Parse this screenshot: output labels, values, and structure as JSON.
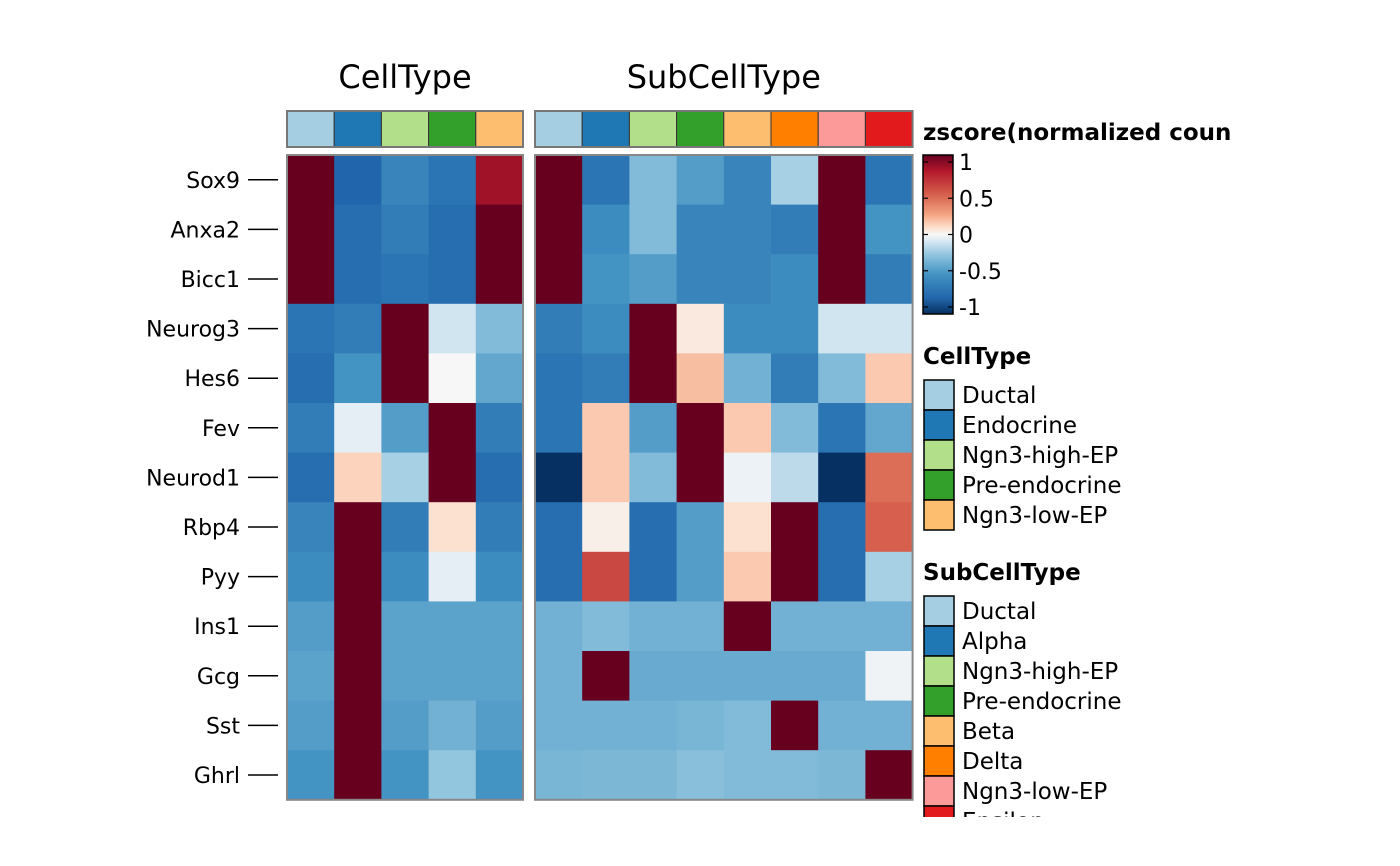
{
  "chart_data": {
    "type": "heatmap",
    "genes": [
      "Sox9",
      "Anxa2",
      "Bicc1",
      "Neurog3",
      "Hes6",
      "Fev",
      "Neurod1",
      "Rbp4",
      "Pyy",
      "Ins1",
      "Gcg",
      "Sst",
      "Ghrl"
    ],
    "color_scale": {
      "title": "zscore(normalized coun",
      "min": -1,
      "max": 1,
      "ticks": [
        "1",
        "0.5",
        "0",
        "-0.5",
        "-1"
      ],
      "tick_values": [
        1,
        0.5,
        0,
        -0.5,
        -1
      ]
    },
    "panels": [
      {
        "title": "CellType",
        "columns": [
          "Ductal",
          "Endocrine",
          "Ngn3-high-EP",
          "Pre-endocrine",
          "Ngn3-low-EP"
        ],
        "column_colors": [
          "#a6cee3",
          "#1f78b4",
          "#b2df8a",
          "#33a02c",
          "#fdbf6f"
        ],
        "values": [
          [
            1.0,
            -0.8,
            -0.6,
            -0.7,
            0.85
          ],
          [
            1.0,
            -0.75,
            -0.65,
            -0.75,
            1.0
          ],
          [
            1.0,
            -0.75,
            -0.7,
            -0.75,
            1.0
          ],
          [
            -0.7,
            -0.65,
            1.0,
            -0.1,
            -0.3
          ],
          [
            -0.75,
            -0.5,
            1.0,
            0.0,
            -0.4
          ],
          [
            -0.65,
            -0.05,
            -0.45,
            1.0,
            -0.65
          ],
          [
            -0.75,
            0.12,
            -0.2,
            1.0,
            -0.75
          ],
          [
            -0.6,
            1.0,
            -0.65,
            0.08,
            -0.65
          ],
          [
            -0.55,
            1.0,
            -0.55,
            -0.05,
            -0.55
          ],
          [
            -0.45,
            1.0,
            -0.42,
            -0.42,
            -0.42
          ],
          [
            -0.42,
            1.0,
            -0.42,
            -0.42,
            -0.42
          ],
          [
            -0.45,
            1.0,
            -0.45,
            -0.35,
            -0.45
          ],
          [
            -0.5,
            1.0,
            -0.5,
            -0.25,
            -0.5
          ]
        ]
      },
      {
        "title": "SubCellType",
        "columns": [
          "Ductal",
          "Alpha",
          "Ngn3-high-EP",
          "Pre-endocrine",
          "Beta",
          "Delta",
          "Ngn3-low-EP",
          "Epsilon"
        ],
        "column_colors": [
          "#a6cee3",
          "#1f78b4",
          "#b2df8a",
          "#33a02c",
          "#fdbf6f",
          "#ff7f00",
          "#fb9a99",
          "#e31a1c"
        ],
        "values": [
          [
            1.0,
            -0.7,
            -0.3,
            -0.45,
            -0.6,
            -0.2,
            1.0,
            -0.7
          ],
          [
            1.0,
            -0.55,
            -0.3,
            -0.6,
            -0.6,
            -0.65,
            1.0,
            -0.5
          ],
          [
            1.0,
            -0.5,
            -0.45,
            -0.6,
            -0.6,
            -0.55,
            1.0,
            -0.65
          ],
          [
            -0.65,
            -0.55,
            1.0,
            0.05,
            -0.55,
            -0.55,
            -0.1,
            -0.1
          ],
          [
            -0.7,
            -0.65,
            1.0,
            0.18,
            -0.35,
            -0.65,
            -0.3,
            0.15
          ],
          [
            -0.7,
            0.15,
            -0.45,
            1.0,
            0.15,
            -0.3,
            -0.7,
            -0.4
          ],
          [
            -1.0,
            0.15,
            -0.3,
            1.0,
            -0.03,
            -0.15,
            -1.0,
            0.45
          ],
          [
            -0.75,
            0.03,
            -0.75,
            -0.45,
            0.08,
            1.0,
            -0.75,
            0.5
          ],
          [
            -0.75,
            0.6,
            -0.75,
            -0.45,
            0.15,
            1.0,
            -0.75,
            -0.2
          ],
          [
            -0.35,
            -0.3,
            -0.35,
            -0.35,
            1.0,
            -0.35,
            -0.35,
            -0.35
          ],
          [
            -0.35,
            1.0,
            -0.38,
            -0.38,
            -0.38,
            -0.38,
            -0.38,
            -0.02
          ],
          [
            -0.35,
            -0.35,
            -0.35,
            -0.33,
            -0.3,
            1.0,
            -0.35,
            -0.35
          ],
          [
            -0.33,
            -0.32,
            -0.32,
            -0.28,
            -0.3,
            -0.3,
            -0.32,
            1.0
          ]
        ]
      }
    ],
    "legends": [
      {
        "title": "CellType",
        "entries": [
          "Ductal",
          "Endocrine",
          "Ngn3-high-EP",
          "Pre-endocrine",
          "Ngn3-low-EP"
        ],
        "colors": [
          "#a6cee3",
          "#1f78b4",
          "#b2df8a",
          "#33a02c",
          "#fdbf6f"
        ]
      },
      {
        "title": "SubCellType",
        "entries": [
          "Ductal",
          "Alpha",
          "Ngn3-high-EP",
          "Pre-endocrine",
          "Beta",
          "Delta",
          "Ngn3-low-EP",
          "Epsilon"
        ],
        "colors": [
          "#a6cee3",
          "#1f78b4",
          "#b2df8a",
          "#33a02c",
          "#fdbf6f",
          "#ff7f00",
          "#fb9a99",
          "#e31a1c"
        ]
      }
    ]
  }
}
